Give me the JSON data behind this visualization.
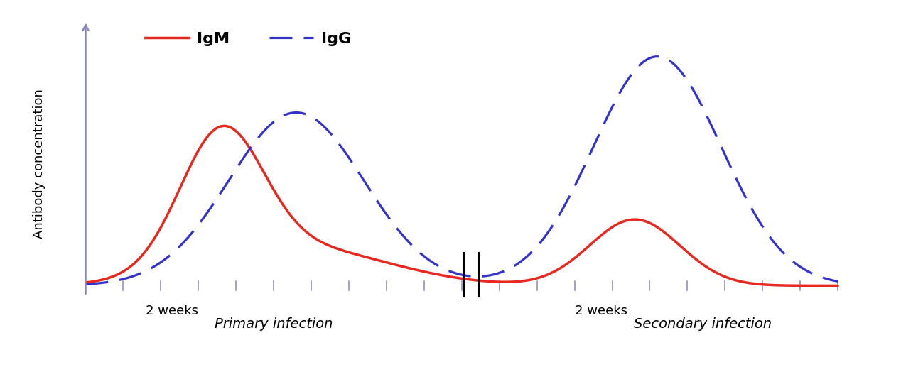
{
  "ylabel": "Antibody concentration",
  "igm_color": "#e8281e",
  "igg_color": "#3333cc",
  "axis_color": "#8888bb",
  "background_color": "#ffffff",
  "ylabel_fontsize": 13,
  "legend_fontsize": 16,
  "annotation_fontsize": 14,
  "tick_label_fontsize": 13,
  "two_weeks_label1": "2 weeks",
  "two_weeks_label2": "2 weeks",
  "primary_label": "Primary infection",
  "secondary_label": "Secondary infection"
}
